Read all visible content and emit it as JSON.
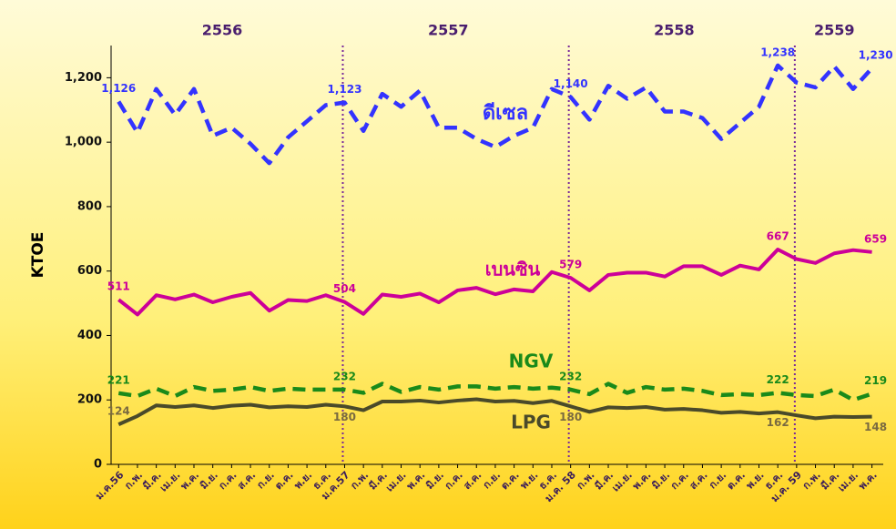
{
  "chart_data": {
    "type": "line",
    "years": [
      "2556",
      "2557",
      "2558",
      "2559"
    ],
    "y_label": "KTOE",
    "categories": [
      "ม.ค.56",
      "ก.พ.",
      "มี.ค.",
      "เม.ย.",
      "พ.ค.",
      "มิ.ย.",
      "ก.ค.",
      "ส.ค.",
      "ก.ย.",
      "ต.ค.",
      "พ.ย.",
      "ธ.ค.",
      "ม.ค.57",
      "ก.พ.",
      "มี.ค.",
      "เม.ย.",
      "พ.ค.",
      "มิ.ย.",
      "ก.ค.",
      "ส.ค.",
      "ก.ย.",
      "ต.ค.",
      "พ.ย.",
      "ธ.ค.",
      "ม.ค. 58",
      "ก.พ.",
      "มี.ค.",
      "เม.ย.",
      "พ.ค.",
      "มิ.ย.",
      "ก.ค.",
      "ส.ค.",
      "ก.ย.",
      "ต.ค.",
      "พ.ย.",
      "ธ.ค.",
      "ม.ค. 59",
      "ก.พ.",
      "มี.ค.",
      "เม.ย.",
      "พ.ค."
    ],
    "series": [
      {
        "name": "ดีเซล",
        "color": "#3333ff",
        "dashed": true,
        "values": [
          1126,
          1030,
          1165,
          1085,
          1165,
          1020,
          1045,
          995,
          935,
          1015,
          1065,
          1115,
          1123,
          1035,
          1150,
          1110,
          1160,
          1045,
          1045,
          1010,
          985,
          1020,
          1045,
          1165,
          1140,
          1070,
          1175,
          1135,
          1170,
          1095,
          1095,
          1075,
          1010,
          1060,
          1110,
          1238,
          1185,
          1170,
          1235,
          1165,
          1230
        ],
        "value_labels": [
          "1,126",
          null,
          null,
          null,
          null,
          null,
          null,
          null,
          null,
          null,
          null,
          null,
          "1,123",
          null,
          null,
          null,
          null,
          null,
          null,
          null,
          null,
          null,
          null,
          null,
          "1,140",
          null,
          null,
          null,
          null,
          null,
          null,
          null,
          null,
          null,
          null,
          "1,238",
          null,
          null,
          null,
          null,
          "1,230"
        ]
      },
      {
        "name": "เบนซิน",
        "color": "#cc0099",
        "dashed": false,
        "values": [
          511,
          465,
          525,
          512,
          527,
          503,
          520,
          532,
          477,
          510,
          507,
          525,
          504,
          467,
          527,
          520,
          530,
          503,
          540,
          548,
          528,
          543,
          537,
          597,
          579,
          540,
          588,
          595,
          595,
          583,
          615,
          615,
          588,
          617,
          605,
          667,
          637,
          625,
          655,
          665,
          659
        ],
        "value_labels": [
          "511",
          null,
          null,
          null,
          null,
          null,
          null,
          null,
          null,
          null,
          null,
          null,
          "504",
          null,
          null,
          null,
          null,
          null,
          null,
          null,
          null,
          null,
          null,
          null,
          "579",
          null,
          null,
          null,
          null,
          null,
          null,
          null,
          null,
          null,
          null,
          "667",
          null,
          null,
          null,
          null,
          "659"
        ]
      },
      {
        "name": "NGV",
        "color": "#1a8a1a",
        "dashed": true,
        "values": [
          221,
          212,
          235,
          212,
          240,
          228,
          232,
          240,
          228,
          235,
          232,
          232,
          232,
          222,
          250,
          225,
          240,
          232,
          242,
          242,
          235,
          240,
          235,
          238,
          232,
          218,
          250,
          222,
          240,
          232,
          235,
          228,
          215,
          218,
          215,
          222,
          215,
          212,
          232,
          200,
          219
        ],
        "value_labels": [
          "221",
          null,
          null,
          null,
          null,
          null,
          null,
          null,
          null,
          null,
          null,
          null,
          "232",
          null,
          null,
          null,
          null,
          null,
          null,
          null,
          null,
          null,
          null,
          null,
          "232",
          null,
          null,
          null,
          null,
          null,
          null,
          null,
          null,
          null,
          null,
          "222",
          null,
          null,
          null,
          null,
          "219"
        ]
      },
      {
        "name": "LPG",
        "color": "#4a4a2a",
        "dashed": false,
        "values": [
          124,
          150,
          183,
          178,
          183,
          175,
          182,
          185,
          177,
          180,
          178,
          185,
          180,
          168,
          195,
          195,
          198,
          192,
          198,
          202,
          195,
          197,
          190,
          197,
          180,
          163,
          177,
          175,
          178,
          170,
          172,
          168,
          160,
          163,
          158,
          162,
          152,
          143,
          148,
          147,
          148
        ],
        "value_labels": [
          "124",
          null,
          null,
          null,
          null,
          null,
          null,
          null,
          null,
          null,
          null,
          null,
          "180",
          null,
          null,
          null,
          null,
          null,
          null,
          null,
          null,
          null,
          null,
          null,
          "180",
          null,
          null,
          null,
          null,
          null,
          null,
          null,
          null,
          null,
          null,
          "162",
          null,
          null,
          null,
          null,
          "148"
        ]
      }
    ],
    "ylim": [
      0,
      1300
    ],
    "yticks": [
      0,
      200,
      400,
      600,
      800,
      {
        "value": 1000,
        "label": "1,000"
      },
      {
        "value": 1200,
        "label": "1,200"
      }
    ]
  }
}
